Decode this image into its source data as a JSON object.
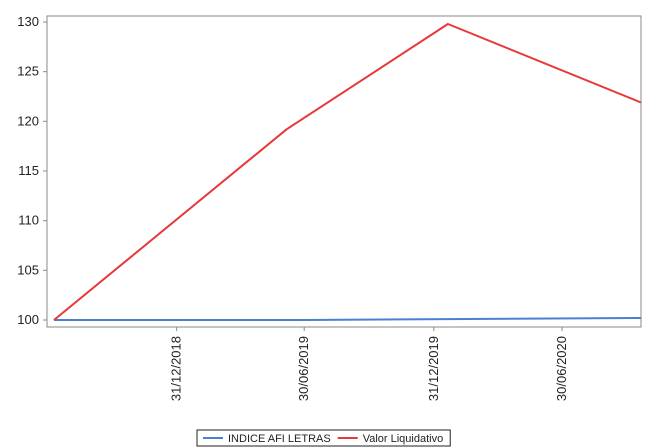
{
  "chart_data": {
    "type": "line",
    "title": "",
    "xlabel": "",
    "ylabel": "",
    "ylim": [
      100,
      130
    ],
    "y_ticks": [
      100,
      105,
      110,
      115,
      120,
      125,
      130
    ],
    "x_ticks": [
      "31/12/2018",
      "30/06/2019",
      "31/12/2019",
      "30/06/2020"
    ],
    "x_range": [
      "2018-06-30",
      "2020-10-20"
    ],
    "grid": false,
    "legend_placement": "bottom-center",
    "series": [
      {
        "name": "INDICE AFI LETRAS",
        "color": "#4a7fd4",
        "points": [
          {
            "x": "2018-07-10",
            "y": 100.0
          },
          {
            "x": "2019-06-30",
            "y": 100.0
          },
          {
            "x": "2020-10-20",
            "y": 100.2
          }
        ]
      },
      {
        "name": "Valor Liquidativo",
        "color": "#e8383a",
        "points": [
          {
            "x": "2018-07-10",
            "y": 100.0
          },
          {
            "x": "2019-06-05",
            "y": 119.2
          },
          {
            "x": "2020-01-20",
            "y": 129.8
          },
          {
            "x": "2020-10-20",
            "y": 121.9
          }
        ]
      }
    ]
  }
}
